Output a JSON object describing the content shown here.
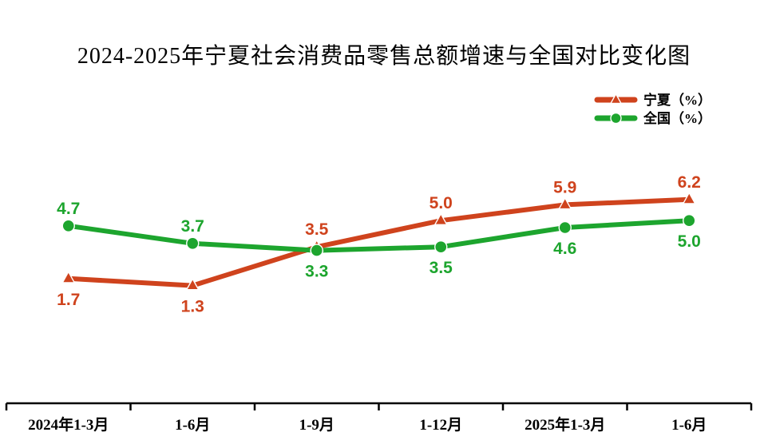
{
  "title": "2024-2025年宁夏社会消费品零售总额增速与全国对比变化图",
  "chart_data": {
    "type": "line",
    "title": "2024-2025年宁夏社会消费品零售总额增速与全国对比变化图",
    "categories": [
      "2024年1-3月",
      "1-6月",
      "1-9月",
      "1-12月",
      "2025年1-3月",
      "1-6月"
    ],
    "series": [
      {
        "name": "宁夏（%）",
        "color": "#cf431d",
        "marker": "triangle",
        "values": [
          1.7,
          1.3,
          3.5,
          5.0,
          5.9,
          6.2
        ],
        "label_sides": [
          "below",
          "below",
          "above",
          "above",
          "above",
          "above"
        ]
      },
      {
        "name": "全国（%）",
        "color": "#1da52e",
        "marker": "circle",
        "values": [
          4.7,
          3.7,
          3.3,
          3.5,
          4.6,
          5.0
        ],
        "label_sides": [
          "above",
          "above",
          "below",
          "below",
          "below",
          "below"
        ]
      }
    ],
    "xlabel": "",
    "ylabel": "",
    "ylim": [
      -5.4,
      7.6
    ],
    "grid": false,
    "legend_position": "top-right",
    "value_format": "one-decimal",
    "axis_color": "#000000"
  }
}
